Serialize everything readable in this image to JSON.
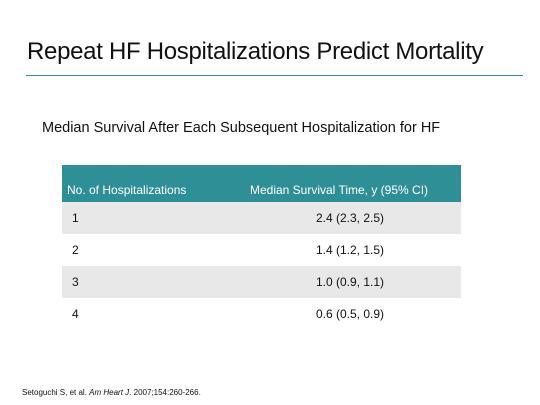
{
  "slide": {
    "title": "Repeat HF Hospitalizations Predict Mortality",
    "subtitle": "Median Survival After Each Subsequent Hospitalization for HF"
  },
  "table": {
    "headers": [
      "No. of Hospitalizations",
      "Median Survival Time, y (95% CI)"
    ],
    "rows": [
      [
        "1",
        "2.4 (2.3, 2.5)"
      ],
      [
        "2",
        "1.4 (1.2, 1.5)"
      ],
      [
        "3",
        "1.0 (0.9, 1.1)"
      ],
      [
        "4",
        "0.6 (0.5, 0.9)"
      ]
    ]
  },
  "citation": {
    "authors": "Setoguchi S, et al. ",
    "journal": "Am Heart J",
    "details": ". 2007;154:260-266."
  },
  "colors": {
    "accent": "#2f8f97",
    "row_shade": "#e8e8e8"
  }
}
